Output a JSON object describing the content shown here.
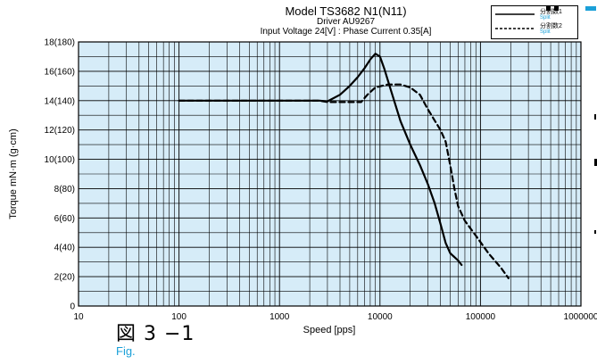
{
  "title_lines": [
    "Model TS3682 N1(N11)",
    "Driver AU9267",
    "Input Voltage 24[V] : Phase Current 0.35[A]"
  ],
  "figure_label": "図 3 −1",
  "figure_sub": "Fig.",
  "legend": [
    {
      "label": "分割数1",
      "sub": "Split",
      "style": "solid"
    },
    {
      "label": "分割数2",
      "sub": "Split",
      "style": "dashed"
    }
  ],
  "colors": {
    "plot_background": "#d6ecf8",
    "grid": "#000000",
    "line": "#000000",
    "accent": "#1ba0d8"
  },
  "chart_data": {
    "type": "line",
    "title": "Model TS3682 N1(N11) / Driver AU9267 / Input Voltage 24[V] : Phase Current 0.35[A]",
    "xlabel": "Speed [pps]",
    "ylabel": "Torque mN·m (g·cm)",
    "x_scale": "log",
    "xlim": [
      10,
      1000000
    ],
    "ylim": [
      0,
      18
    ],
    "x_ticks": [
      10,
      100,
      1000,
      10000,
      100000,
      1000000
    ],
    "x_tick_labels": [
      "10",
      "100",
      "1000",
      "10000",
      "100000",
      "1000000"
    ],
    "y_ticks": [
      0,
      2,
      4,
      6,
      8,
      10,
      12,
      14,
      16,
      18
    ],
    "y_tick_labels": [
      "0",
      "2(20)",
      "4(40)",
      "6(60)",
      "8(80)",
      "10(100)",
      "12(120)",
      "14(140)",
      "16(160)",
      "18(180)"
    ],
    "grid": true,
    "legend_position": "top-right",
    "series": [
      {
        "name": "分割数1",
        "style": "solid",
        "points": [
          [
            100,
            14.0
          ],
          [
            1000,
            14.0
          ],
          [
            2500,
            14.0
          ],
          [
            3000,
            13.95
          ],
          [
            4000,
            14.4
          ],
          [
            5000,
            15.0
          ],
          [
            6000,
            15.6
          ],
          [
            7000,
            16.2
          ],
          [
            8000,
            16.8
          ],
          [
            9000,
            17.2
          ],
          [
            10000,
            17.0
          ],
          [
            11000,
            16.2
          ],
          [
            13000,
            14.6
          ],
          [
            16000,
            12.6
          ],
          [
            20000,
            11.0
          ],
          [
            25000,
            9.6
          ],
          [
            30000,
            8.3
          ],
          [
            35000,
            7.0
          ],
          [
            40000,
            5.6
          ],
          [
            45000,
            4.3
          ],
          [
            50000,
            3.6
          ],
          [
            60000,
            3.1
          ],
          [
            65000,
            2.8
          ]
        ]
      },
      {
        "name": "分割数2",
        "style": "dashed",
        "points": [
          [
            100,
            14.0
          ],
          [
            1000,
            14.0
          ],
          [
            2500,
            14.0
          ],
          [
            3000,
            13.9
          ],
          [
            5000,
            13.9
          ],
          [
            6500,
            13.9
          ],
          [
            7500,
            14.4
          ],
          [
            9000,
            14.9
          ],
          [
            12000,
            15.1
          ],
          [
            16000,
            15.1
          ],
          [
            20000,
            14.9
          ],
          [
            25000,
            14.4
          ],
          [
            30000,
            13.4
          ],
          [
            40000,
            12.0
          ],
          [
            45000,
            11.2
          ],
          [
            50000,
            9.6
          ],
          [
            55000,
            8.0
          ],
          [
            60000,
            6.8
          ],
          [
            70000,
            5.8
          ],
          [
            90000,
            4.8
          ],
          [
            120000,
            3.6
          ],
          [
            160000,
            2.6
          ],
          [
            190000,
            1.9
          ]
        ]
      }
    ]
  }
}
